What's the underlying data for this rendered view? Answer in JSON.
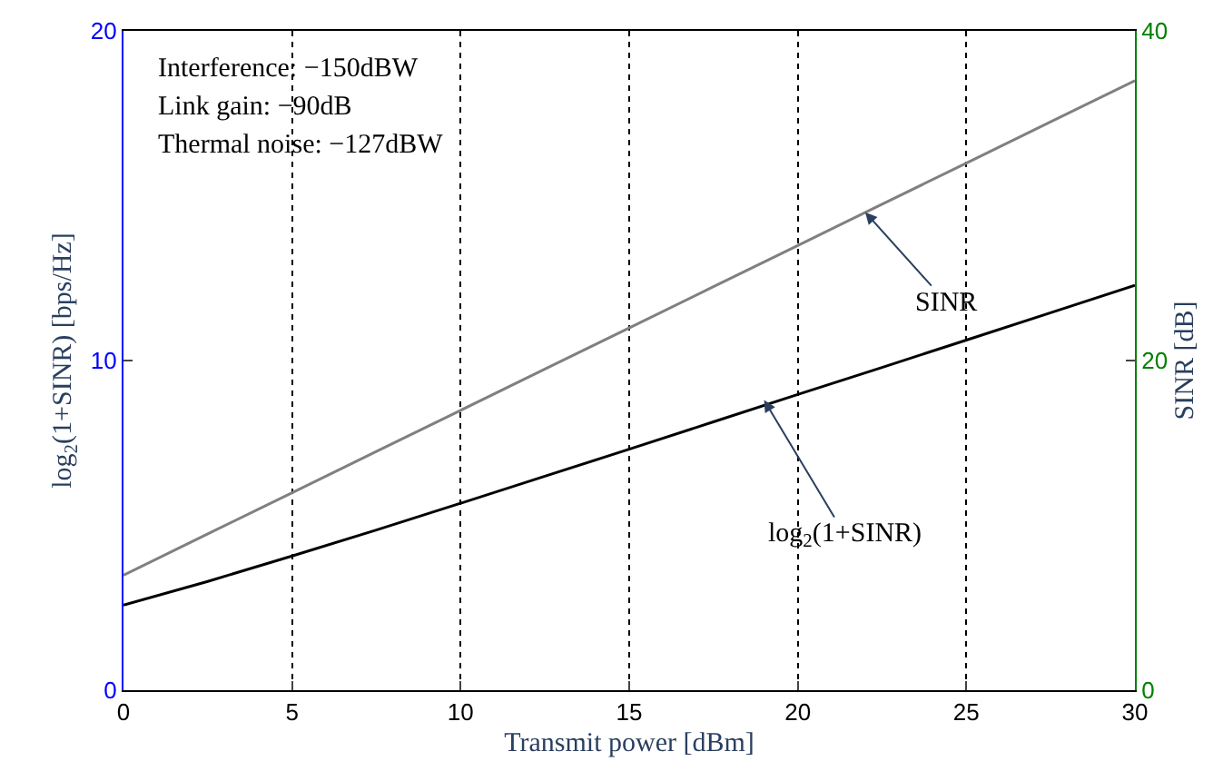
{
  "chart_data": {
    "type": "line",
    "xlabel": "Transmit power [dBm]",
    "ylabel": "log$_{2}$(1+SINR) [bps/Hz]",
    "y2label": "SINR [dB]",
    "x": [
      0,
      2.5,
      5,
      7.5,
      10,
      12.5,
      15,
      17.5,
      20,
      22.5,
      25,
      27.5,
      30
    ],
    "series": [
      {
        "color": "#000000",
        "values": [
          2.58,
          3.3,
          4.07,
          4.86,
          5.67,
          6.49,
          7.31,
          8.14,
          8.97,
          9.79,
          10.62,
          11.45,
          12.28
        ]
      },
      {
        "color": "#808080",
        "axis": "y2",
        "values": [
          6.98,
          9.48,
          11.98,
          14.48,
          16.98,
          19.48,
          21.98,
          24.48,
          26.98,
          29.48,
          31.98,
          34.48,
          36.98
        ]
      }
    ],
    "xlim": [
      0,
      30
    ],
    "xticks": [
      0,
      5,
      10,
      15,
      20,
      25,
      30
    ],
    "ylim": [
      0,
      20
    ],
    "yticks": [
      0,
      10,
      20
    ],
    "y2lim": [
      0,
      40
    ],
    "y2ticks": [
      0,
      20,
      40
    ],
    "grid": "x",
    "legend": false,
    "marker": "none",
    "line_style": "solid",
    "annotations": [
      "Interference: −150dBW",
      "Link gain: −90dB",
      "Thermal noise: −127dBW",
      {
        "text": "SINR",
        "x": 22,
        "y": 14.5
      },
      {
        "text": "log$_{2}$(1+SINR)",
        "x": 19,
        "y": 8.8
      }
    ]
  }
}
